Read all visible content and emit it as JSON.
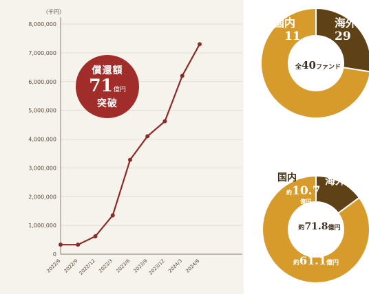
{
  "chart_data": [
    {
      "type": "line",
      "unit_label": "（千円）",
      "x": [
        "2022/6",
        "2022/9",
        "2022/12",
        "2023/3",
        "2023/6",
        "2023/9",
        "2023/12",
        "2024/3",
        "2024/6"
      ],
      "values": [
        330000,
        330000,
        620000,
        1350000,
        3280000,
        4100000,
        4620000,
        6200000,
        7300000
      ],
      "ylim": [
        0,
        8000000
      ],
      "yticks": [
        "0",
        "1,000,000",
        "2,000,000",
        "3,000,000",
        "4,000,000",
        "5,000,000",
        "6,000,000",
        "7,000,000",
        "8,000,000"
      ],
      "ytick_values": [
        0,
        1000000,
        2000000,
        3000000,
        4000000,
        5000000,
        6000000,
        7000000,
        8000000
      ],
      "line_color": "#8a2b26",
      "grid": true
    },
    {
      "type": "pie",
      "categories": [
        "国内",
        "海外"
      ],
      "values": [
        11,
        29
      ],
      "colors": [
        "#5e4116",
        "#d69b2b"
      ],
      "labels": [
        "国内",
        "海外"
      ],
      "value_labels": [
        "11",
        "29"
      ],
      "center_prefix": "全",
      "center_num": "40",
      "center_suffix": "ファンド"
    },
    {
      "type": "pie",
      "categories": [
        "国内",
        "海外"
      ],
      "values": [
        10.7,
        61.1
      ],
      "colors": [
        "#5e4116",
        "#d69b2b"
      ],
      "labels": [
        "国内",
        "海外"
      ],
      "domestic_prefix": "約",
      "domestic_num": "10.7",
      "domestic_unit": "億円",
      "overseas_prefix": "約",
      "overseas_num": "61.1",
      "overseas_unit": "億円",
      "center_prefix": "約",
      "center_num": "71.8",
      "center_unit": "億円"
    }
  ],
  "badge": {
    "line1": "償還額",
    "num": "71",
    "unit": "億円",
    "line3": "突破"
  },
  "colors": {
    "bg_panel": "#f6f3ec",
    "badge": "#a12d2a",
    "domestic": "#5e4116",
    "overseas": "#d69b2b"
  }
}
